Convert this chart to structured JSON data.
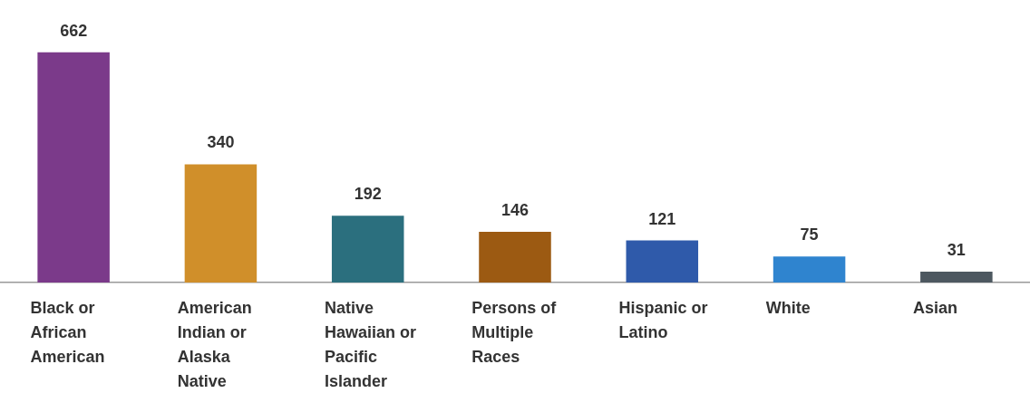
{
  "chart_data": {
    "type": "bar",
    "categories": [
      "Black or African American",
      "American Indian or Alaska Native",
      "Native Hawaiian or Pacific Islander",
      "Persons of Multiple Races",
      "Hispanic or Latino",
      "White",
      "Asian"
    ],
    "values": [
      662,
      340,
      192,
      146,
      121,
      75,
      31
    ],
    "colors": [
      "#7b3a8a",
      "#d08f2a",
      "#2b6f7e",
      "#9c5a12",
      "#2f5aaa",
      "#2f84cf",
      "#4d5860"
    ],
    "data_labels": true,
    "grid": false,
    "legend": false
  }
}
